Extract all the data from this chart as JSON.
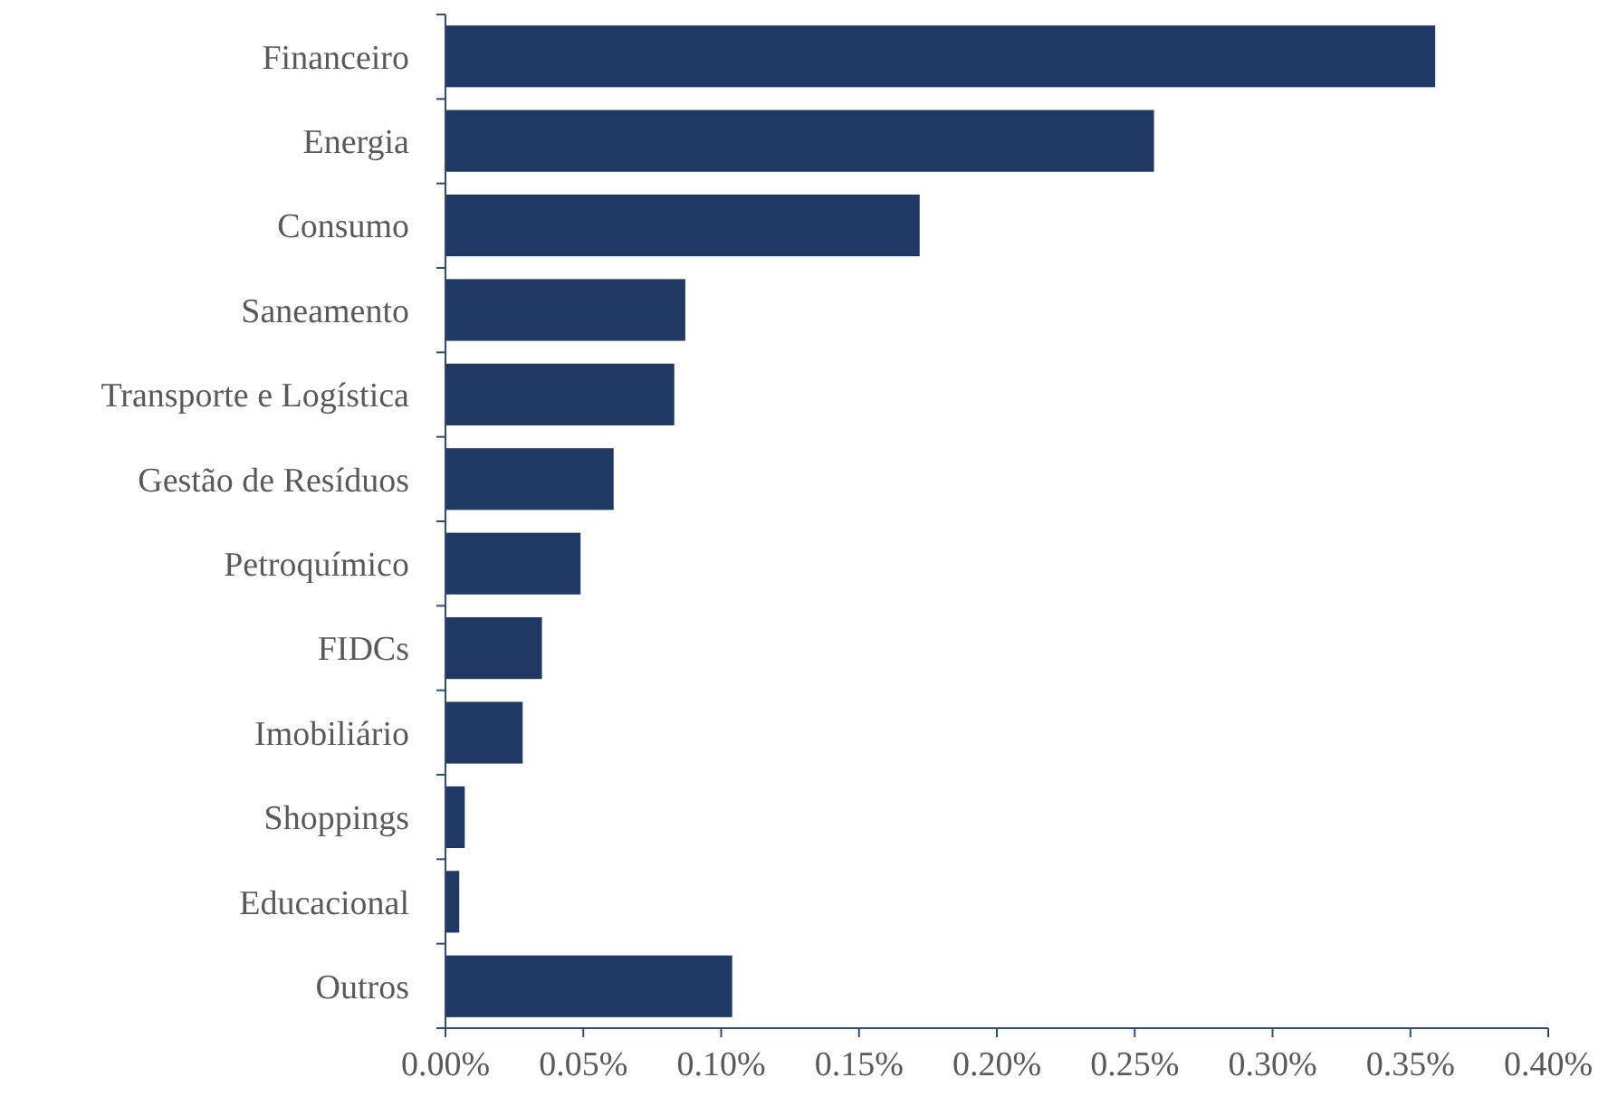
{
  "chart_data": {
    "type": "bar",
    "orientation": "horizontal",
    "categories": [
      "Financeiro",
      "Energia",
      "Consumo",
      "Saneamento",
      "Transporte e Logística",
      "Gestão de Resíduos",
      "Petroquímico",
      "FIDCs",
      "Imobiliário",
      "Shoppings",
      "Educacional",
      "Outros"
    ],
    "values": [
      0.359,
      0.257,
      0.172,
      0.087,
      0.083,
      0.061,
      0.049,
      0.035,
      0.028,
      0.007,
      0.005,
      0.104
    ],
    "color": "#203864",
    "xlim": [
      0,
      0.4
    ],
    "xticks": [
      {
        "value": 0,
        "label": "0.00%"
      },
      {
        "value": 0.05,
        "label": "0.05%"
      },
      {
        "value": 0.1,
        "label": "0.10%"
      },
      {
        "value": 0.15,
        "label": "0.15%"
      },
      {
        "value": 0.2,
        "label": "0.20%"
      },
      {
        "value": 0.25,
        "label": "0.25%"
      },
      {
        "value": 0.3,
        "label": "0.30%"
      },
      {
        "value": 0.35,
        "label": "0.35%"
      },
      {
        "value": 0.4,
        "label": "0.40%"
      }
    ],
    "grid": false
  }
}
